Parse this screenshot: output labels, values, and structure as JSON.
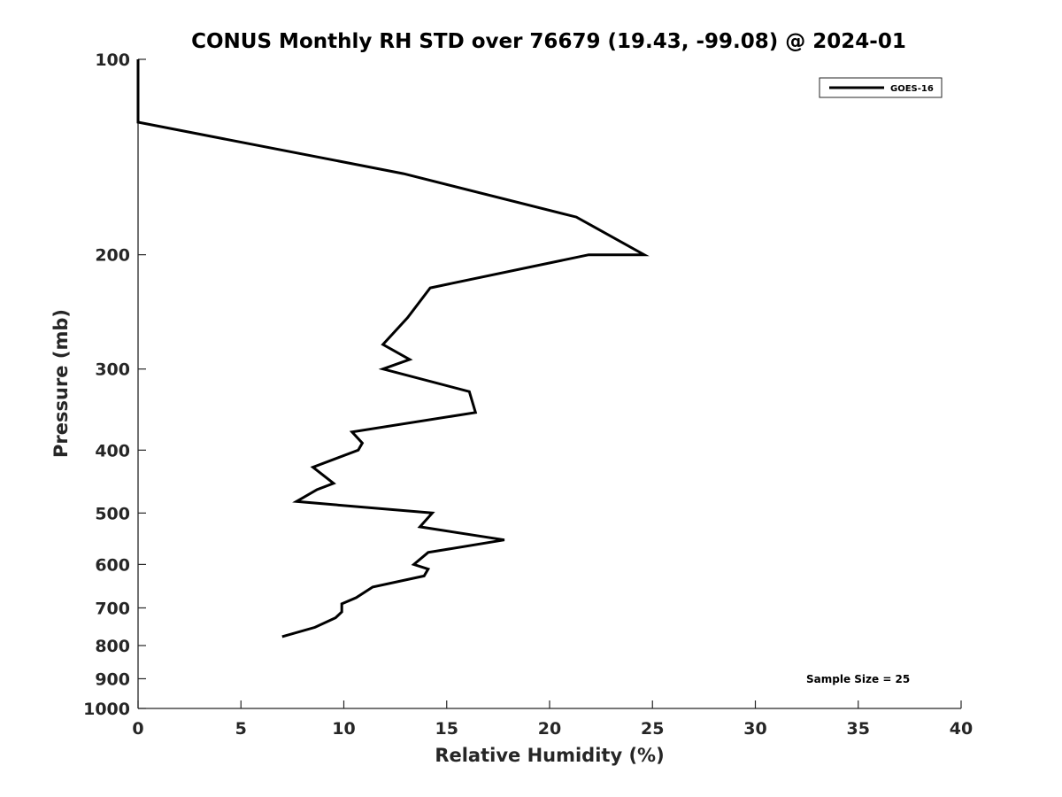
{
  "chart_data": {
    "type": "line",
    "title": "CONUS Monthly RH STD over 76679 (19.43, -99.08) @ 2024-01",
    "xlabel": "Relative Humidity (%)",
    "ylabel": "Pressure (mb)",
    "xlim": [
      0,
      40
    ],
    "ylim": [
      100,
      1000
    ],
    "y_scale": "log",
    "y_reversed": true,
    "grid": false,
    "legend_position": "top-right",
    "x_ticks": [
      "0",
      "5",
      "10",
      "15",
      "20",
      "25",
      "30",
      "35",
      "40"
    ],
    "y_ticks": [
      "100",
      "200",
      "300",
      "400",
      "500",
      "600",
      "700",
      "800",
      "900",
      "1000"
    ],
    "annotation": "Sample Size = 25",
    "series": [
      {
        "name": "GOES-16",
        "color": "#000000",
        "points": [
          {
            "rh": 0.0,
            "p": 100
          },
          {
            "rh": 0.0,
            "p": 125
          },
          {
            "rh": 12.9,
            "p": 150
          },
          {
            "rh": 21.3,
            "p": 175
          },
          {
            "rh": 24.6,
            "p": 200
          },
          {
            "rh": 21.9,
            "p": 200
          },
          {
            "rh": 14.2,
            "p": 225
          },
          {
            "rh": 13.1,
            "p": 250
          },
          {
            "rh": 11.9,
            "p": 275
          },
          {
            "rh": 13.2,
            "p": 290
          },
          {
            "rh": 11.9,
            "p": 300
          },
          {
            "rh": 16.1,
            "p": 325
          },
          {
            "rh": 16.4,
            "p": 350
          },
          {
            "rh": 10.4,
            "p": 375
          },
          {
            "rh": 10.9,
            "p": 390
          },
          {
            "rh": 10.7,
            "p": 400
          },
          {
            "rh": 8.5,
            "p": 425
          },
          {
            "rh": 9.5,
            "p": 450
          },
          {
            "rh": 8.7,
            "p": 460
          },
          {
            "rh": 7.7,
            "p": 480
          },
          {
            "rh": 14.3,
            "p": 500
          },
          {
            "rh": 13.7,
            "p": 525
          },
          {
            "rh": 17.8,
            "p": 550
          },
          {
            "rh": 14.1,
            "p": 575
          },
          {
            "rh": 13.4,
            "p": 600
          },
          {
            "rh": 14.1,
            "p": 610
          },
          {
            "rh": 13.9,
            "p": 625
          },
          {
            "rh": 11.4,
            "p": 650
          },
          {
            "rh": 10.6,
            "p": 675
          },
          {
            "rh": 9.9,
            "p": 690
          },
          {
            "rh": 9.9,
            "p": 710
          },
          {
            "rh": 9.6,
            "p": 725
          },
          {
            "rh": 8.6,
            "p": 750
          },
          {
            "rh": 7.0,
            "p": 775
          }
        ]
      }
    ]
  }
}
